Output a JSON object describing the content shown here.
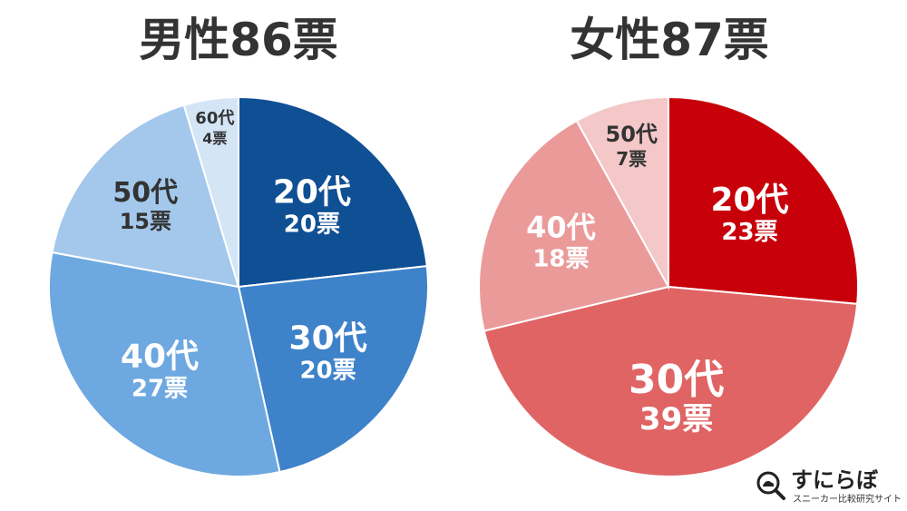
{
  "chart_data": [
    {
      "type": "pie",
      "title": "男性86票",
      "slices": [
        {
          "label": "20代",
          "value_label": "20票",
          "value": 20,
          "color": "#0f4f94",
          "text_color": "#ffffff"
        },
        {
          "label": "30代",
          "value_label": "20票",
          "value": 20,
          "color": "#3e82c9",
          "text_color": "#ffffff"
        },
        {
          "label": "40代",
          "value_label": "27票",
          "value": 27,
          "color": "#6ea8e0",
          "text_color": "#ffffff"
        },
        {
          "label": "50代",
          "value_label": "15票",
          "value": 15,
          "color": "#a4c8ec",
          "text_color": "#333333"
        },
        {
          "label": "60代",
          "value_label": "4票",
          "value": 4,
          "color": "#d4e5f6",
          "text_color": "#333333"
        }
      ]
    },
    {
      "type": "pie",
      "title": "女性87票",
      "slices": [
        {
          "label": "20代",
          "value_label": "23票",
          "value": 23,
          "color": "#c8000a",
          "text_color": "#ffffff"
        },
        {
          "label": "30代",
          "value_label": "39票",
          "value": 39,
          "color": "#e06464",
          "text_color": "#ffffff"
        },
        {
          "label": "40代",
          "value_label": "18票",
          "value": 18,
          "color": "#eb9a9a",
          "text_color": "#ffffff"
        },
        {
          "label": "50代",
          "value_label": "7票",
          "value": 7,
          "color": "#f4c8c8",
          "text_color": "#333333"
        }
      ]
    }
  ],
  "logo": {
    "name": "すにらぼ",
    "tagline": "スニーカー比較研究サイト",
    "mark_icon": "magnifier-sneaker-icon"
  }
}
